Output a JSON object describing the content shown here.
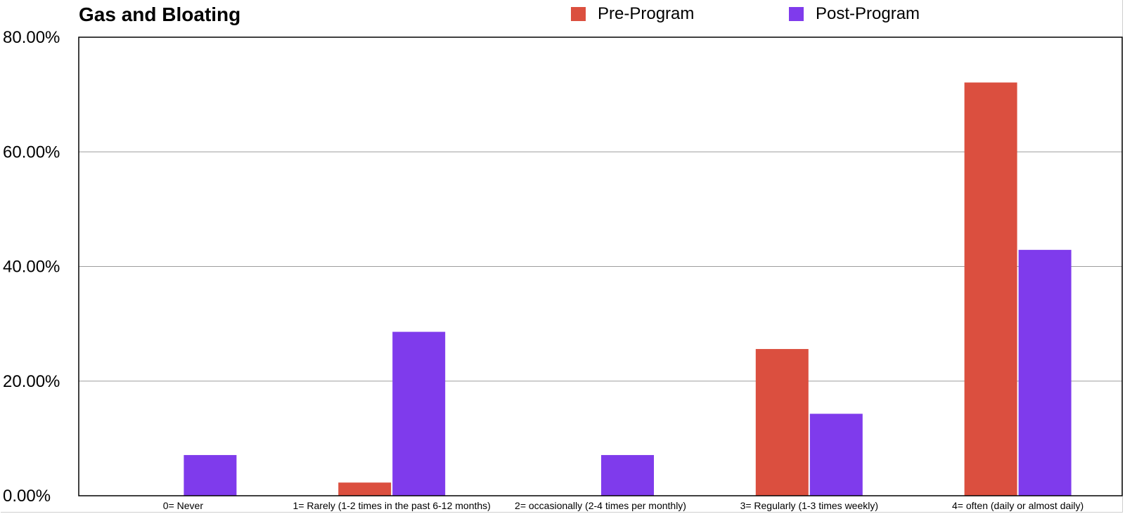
{
  "chart_data": {
    "type": "bar",
    "title": "Gas and Bloating",
    "xlabel": "",
    "ylabel": "",
    "ylim": [
      0,
      0.8
    ],
    "yticks": [
      "0.00%",
      "20.00%",
      "40.00%",
      "60.00%",
      "80.00%"
    ],
    "ytick_values": [
      0,
      0.2,
      0.4,
      0.6,
      0.8
    ],
    "grid": true,
    "legend_position": "top",
    "categories": [
      "0= Never",
      "1= Rarely (1-2 times in the past 6-12 months)",
      "2= occasionally (2-4 times per monthly)",
      "3= Regularly (1-3 times weekly)",
      "4= often (daily or almost daily)"
    ],
    "series": [
      {
        "name": "Pre-Program",
        "color": "#DB4F3F",
        "values": [
          0,
          0.023,
          0,
          0.256,
          0.721
        ]
      },
      {
        "name": "Post-Program",
        "color": "#7F3BEC",
        "values": [
          0.071,
          0.286,
          0.071,
          0.143,
          0.429
        ]
      }
    ]
  }
}
